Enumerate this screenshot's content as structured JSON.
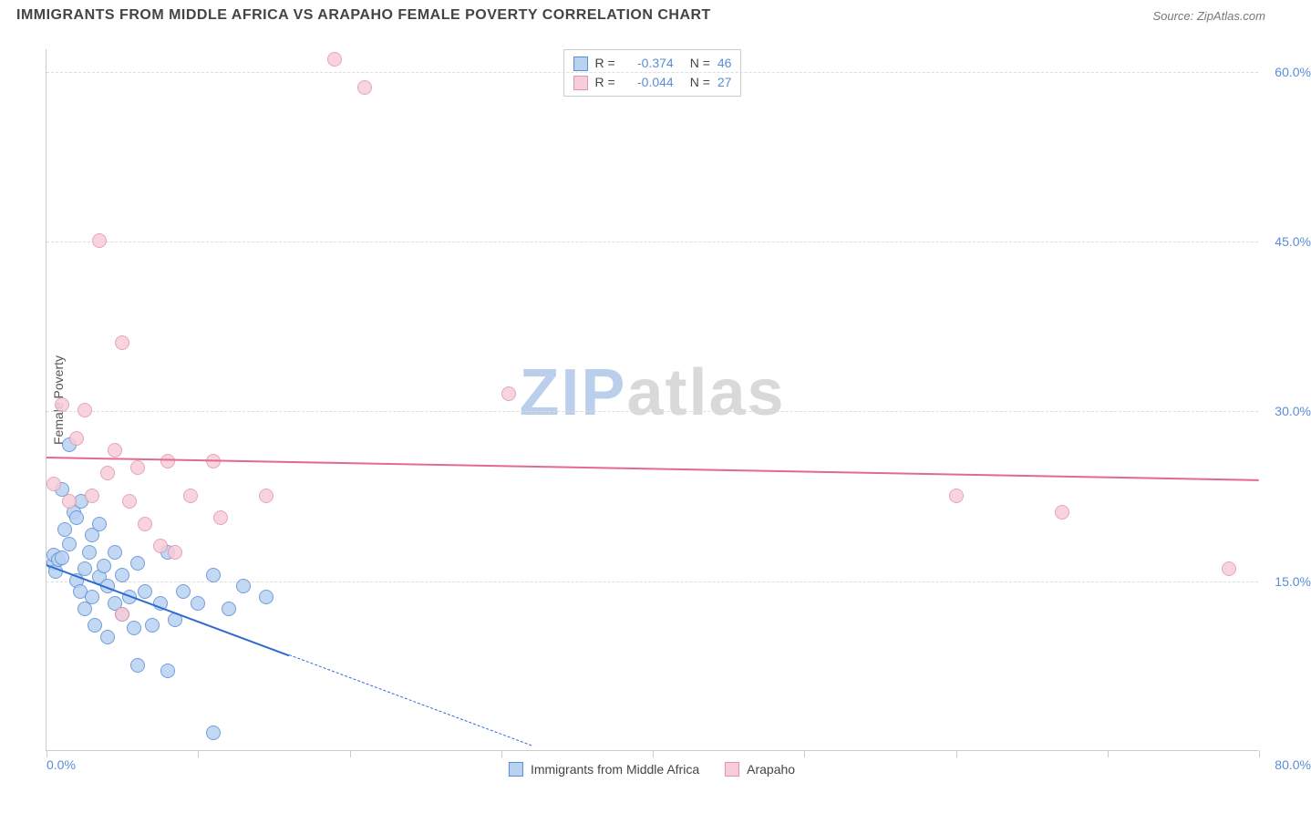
{
  "header": {
    "title": "IMMIGRANTS FROM MIDDLE AFRICA VS ARAPAHO FEMALE POVERTY CORRELATION CHART",
    "source_prefix": "Source: ",
    "source_name": "ZipAtlas.com"
  },
  "chart": {
    "type": "scatter",
    "ylabel": "Female Poverty",
    "xlim": [
      0,
      80
    ],
    "ylim": [
      0,
      62
    ],
    "xtick_labels": {
      "min": "0.0%",
      "max": "80.0%"
    },
    "xtick_positions": [
      0,
      10,
      20,
      30,
      40,
      50,
      60,
      70,
      80
    ],
    "ytick_labels": [
      "15.0%",
      "30.0%",
      "45.0%",
      "60.0%"
    ],
    "ytick_values": [
      15,
      30,
      45,
      60
    ],
    "grid_color": "#dddddd",
    "axis_color": "#cccccc",
    "background_color": "#ffffff",
    "tick_label_color": "#5b8dd6",
    "point_radius": 8,
    "series": [
      {
        "name": "Immigrants from Middle Africa",
        "fill": "#b9d2f0",
        "stroke": "#5b8dd6",
        "trend_color": "#2e6bd1",
        "R": "-0.374",
        "N": "46",
        "trend": {
          "x1": 0,
          "y1": 16.5,
          "x2": 16,
          "y2": 8.5,
          "dash_x2": 32,
          "dash_y2": 0.5
        },
        "points": [
          [
            0.5,
            16.5
          ],
          [
            0.5,
            17.2
          ],
          [
            0.6,
            15.8
          ],
          [
            0.8,
            16.8
          ],
          [
            1.0,
            17.0
          ],
          [
            1.0,
            23.0
          ],
          [
            1.2,
            19.5
          ],
          [
            1.5,
            18.2
          ],
          [
            1.5,
            27.0
          ],
          [
            1.8,
            21.0
          ],
          [
            2.0,
            20.5
          ],
          [
            2.0,
            15.0
          ],
          [
            2.2,
            14.0
          ],
          [
            2.3,
            22.0
          ],
          [
            2.5,
            16.0
          ],
          [
            2.5,
            12.5
          ],
          [
            2.8,
            17.5
          ],
          [
            3.0,
            19.0
          ],
          [
            3.0,
            13.5
          ],
          [
            3.2,
            11.0
          ],
          [
            3.5,
            20.0
          ],
          [
            3.5,
            15.3
          ],
          [
            3.8,
            16.3
          ],
          [
            4.0,
            14.5
          ],
          [
            4.0,
            10.0
          ],
          [
            4.5,
            13.0
          ],
          [
            4.5,
            17.5
          ],
          [
            5.0,
            12.0
          ],
          [
            5.0,
            15.5
          ],
          [
            5.5,
            13.5
          ],
          [
            5.8,
            10.8
          ],
          [
            6.0,
            16.5
          ],
          [
            6.0,
            7.5
          ],
          [
            6.5,
            14.0
          ],
          [
            7.0,
            11.0
          ],
          [
            7.5,
            13.0
          ],
          [
            8.0,
            17.5
          ],
          [
            8.0,
            7.0
          ],
          [
            8.5,
            11.5
          ],
          [
            9.0,
            14.0
          ],
          [
            10.0,
            13.0
          ],
          [
            11.0,
            15.5
          ],
          [
            12.0,
            12.5
          ],
          [
            13.0,
            14.5
          ],
          [
            14.5,
            13.5
          ],
          [
            11.0,
            1.5
          ]
        ]
      },
      {
        "name": "Arapaho",
        "fill": "#f6cdd9",
        "stroke": "#e395ab",
        "trend_color": "#e46a8c",
        "R": "-0.044",
        "N": "27",
        "trend": {
          "x1": 0,
          "y1": 26.0,
          "x2": 80,
          "y2": 24.0
        },
        "points": [
          [
            0.5,
            23.5
          ],
          [
            1.0,
            30.5
          ],
          [
            1.5,
            22.0
          ],
          [
            2.0,
            27.5
          ],
          [
            2.5,
            30.0
          ],
          [
            3.0,
            22.5
          ],
          [
            3.5,
            45.0
          ],
          [
            4.0,
            24.5
          ],
          [
            4.5,
            26.5
          ],
          [
            5.0,
            36.0
          ],
          [
            5.0,
            12.0
          ],
          [
            5.5,
            22.0
          ],
          [
            6.0,
            25.0
          ],
          [
            6.5,
            20.0
          ],
          [
            7.5,
            18.0
          ],
          [
            8.0,
            25.5
          ],
          [
            8.5,
            17.5
          ],
          [
            9.5,
            22.5
          ],
          [
            11.0,
            25.5
          ],
          [
            11.5,
            20.5
          ],
          [
            14.5,
            22.5
          ],
          [
            19.0,
            61.0
          ],
          [
            21.0,
            58.5
          ],
          [
            30.5,
            31.5
          ],
          [
            60.0,
            22.5
          ],
          [
            67.0,
            21.0
          ],
          [
            78.0,
            16.0
          ]
        ]
      }
    ],
    "legend_top": {
      "r_label": "R =",
      "n_label": "N ="
    },
    "watermark": {
      "bold": "ZIP",
      "rest": "atlas"
    }
  }
}
